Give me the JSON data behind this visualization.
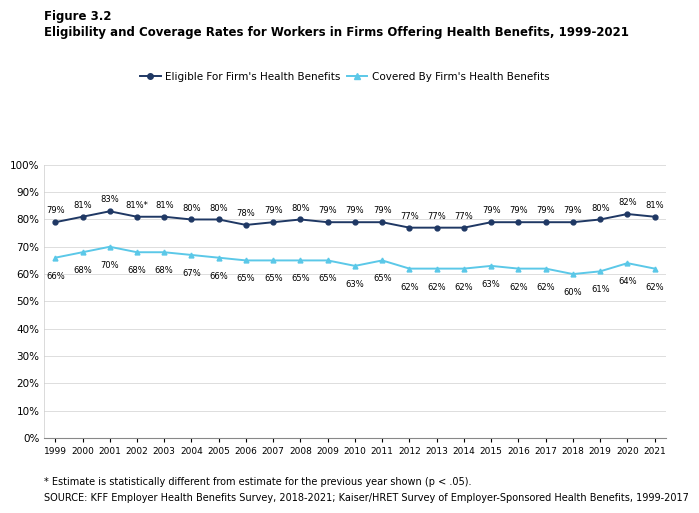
{
  "years": [
    1999,
    2000,
    2001,
    2002,
    2003,
    2004,
    2005,
    2006,
    2007,
    2008,
    2009,
    2010,
    2011,
    2012,
    2013,
    2014,
    2015,
    2016,
    2017,
    2018,
    2019,
    2020,
    2021
  ],
  "eligible": [
    79,
    81,
    83,
    81,
    81,
    80,
    80,
    78,
    79,
    80,
    79,
    79,
    79,
    77,
    77,
    77,
    79,
    79,
    79,
    79,
    80,
    82,
    81
  ],
  "covered": [
    66,
    68,
    70,
    68,
    68,
    67,
    66,
    65,
    65,
    65,
    65,
    63,
    65,
    62,
    62,
    62,
    63,
    62,
    62,
    60,
    61,
    64,
    62
  ],
  "eligible_star": [
    false,
    false,
    false,
    true,
    false,
    false,
    false,
    false,
    false,
    false,
    false,
    false,
    false,
    false,
    false,
    false,
    false,
    false,
    false,
    false,
    false,
    false,
    false
  ],
  "eligible_color": "#1f3864",
  "covered_color": "#5bc8e8",
  "figure_label": "Figure 3.2",
  "title": "Eligibility and Coverage Rates for Workers in Firms Offering Health Benefits, 1999-2021",
  "legend_eligible": "Eligible For Firm's Health Benefits",
  "legend_covered": "Covered By Firm's Health Benefits",
  "footnote1": "* Estimate is statistically different from estimate for the previous year shown (p < .05).",
  "footnote2": "SOURCE: KFF Employer Health Benefits Survey, 2018-2021; Kaiser/HRET Survey of Employer-Sponsored Health Benefits, 1999-2017",
  "ylim": [
    0,
    100
  ],
  "yticks": [
    0,
    10,
    20,
    30,
    40,
    50,
    60,
    70,
    80,
    90,
    100
  ]
}
